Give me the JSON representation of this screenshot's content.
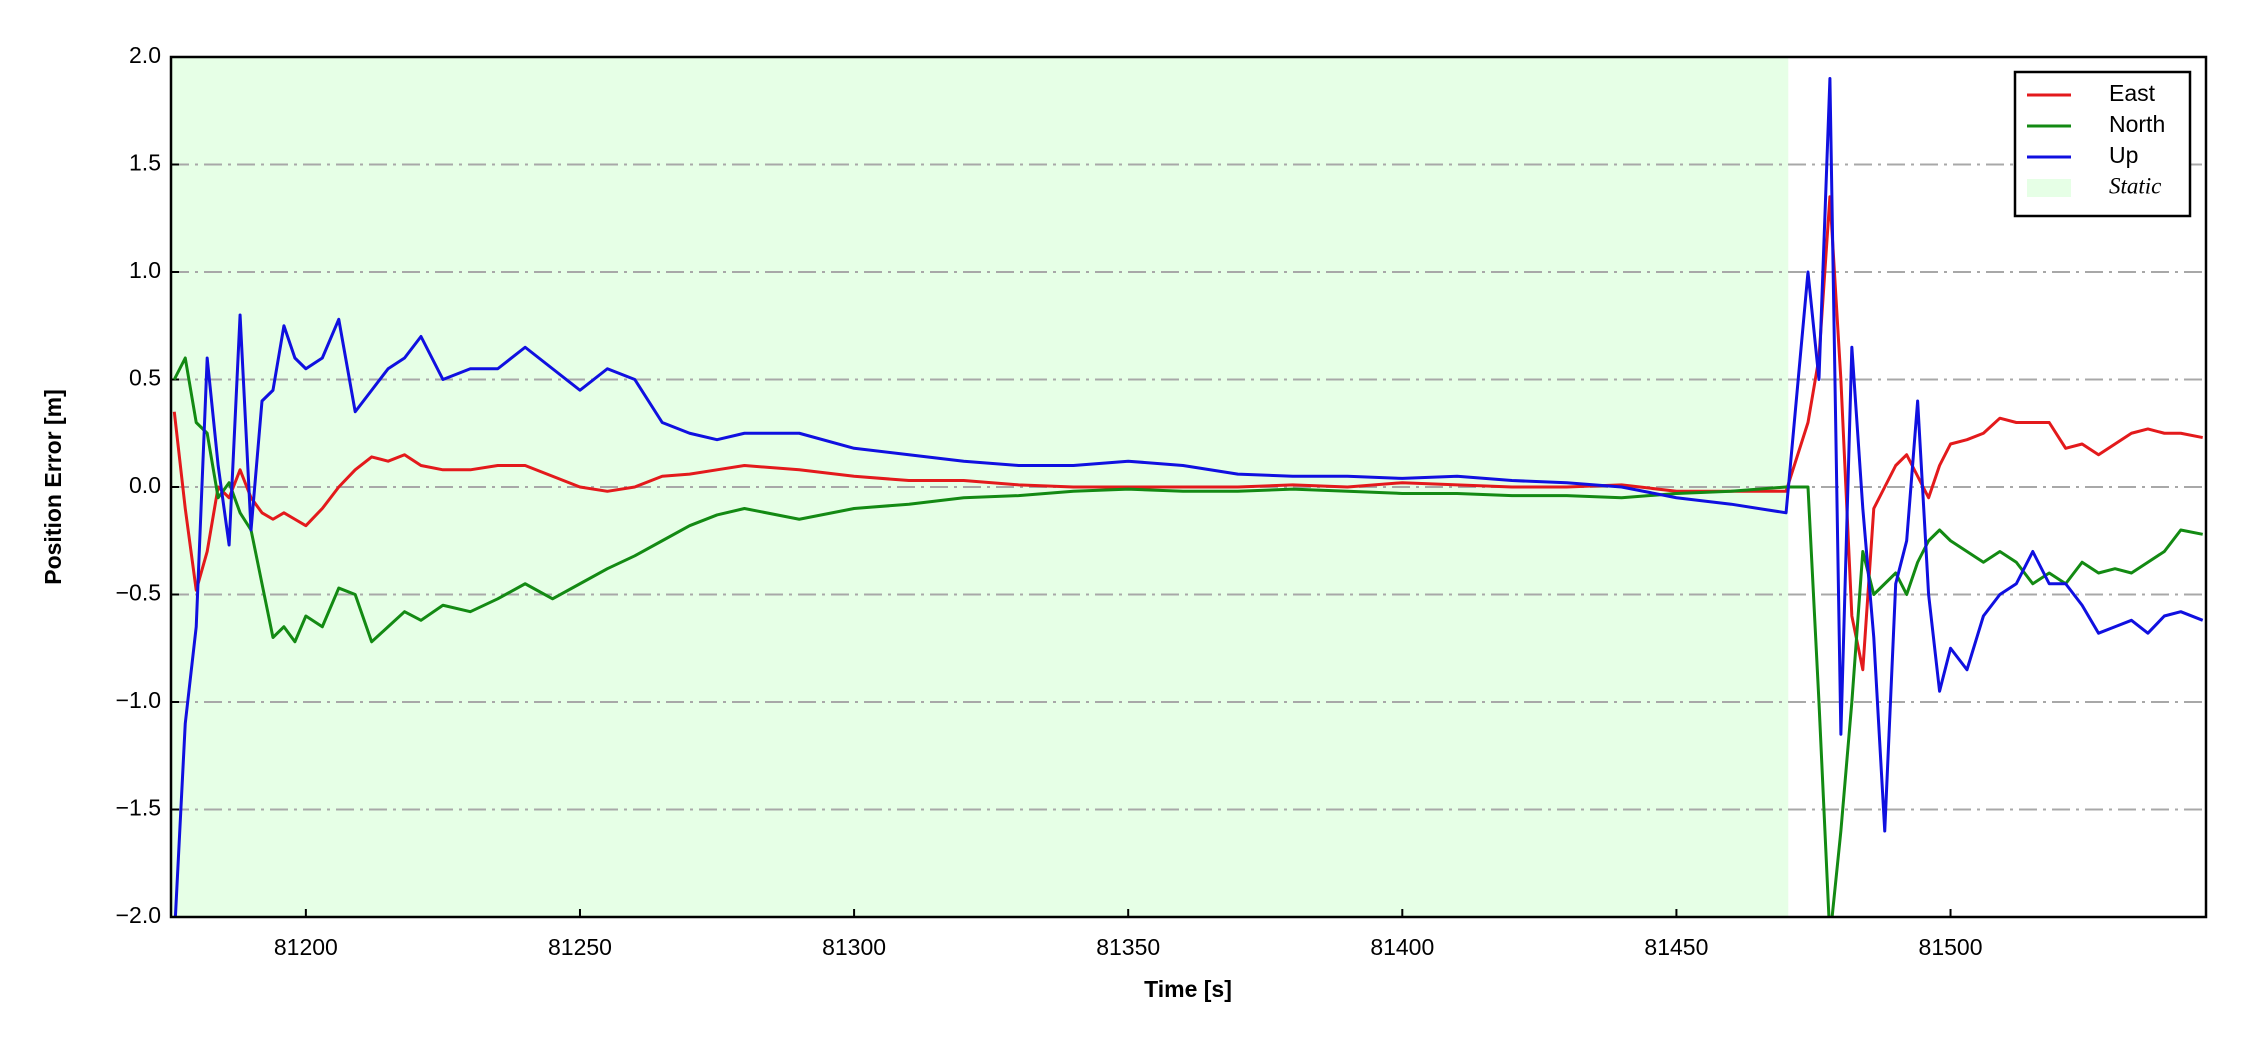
{
  "chart_data": {
    "type": "line",
    "xlabel": "Time [s]",
    "ylabel": "Position Error [m]",
    "x": [
      81176,
      81178,
      81180,
      81182,
      81184,
      81186,
      81188,
      81190,
      81192,
      81194,
      81196,
      81198,
      81200,
      81203,
      81206,
      81209,
      81212,
      81215,
      81218,
      81221,
      81225,
      81230,
      81235,
      81240,
      81245,
      81250,
      81255,
      81260,
      81265,
      81270,
      81275,
      81280,
      81290,
      81300,
      81310,
      81320,
      81330,
      81340,
      81350,
      81360,
      81370,
      81380,
      81390,
      81400,
      81410,
      81420,
      81430,
      81440,
      81450,
      81460,
      81470,
      81474,
      81476,
      81478,
      81480,
      81482,
      81484,
      81486,
      81488,
      81490,
      81492,
      81494,
      81496,
      81498,
      81500,
      81503,
      81506,
      81509,
      81512,
      81515,
      81518,
      81521,
      81524,
      81527,
      81530,
      81533,
      81536,
      81539,
      81542,
      81546
    ],
    "series": [
      {
        "name": "East",
        "color": "#e31a1c",
        "values": [
          0.35,
          -0.1,
          -0.48,
          -0.3,
          0.0,
          -0.05,
          0.08,
          -0.05,
          -0.12,
          -0.15,
          -0.12,
          -0.15,
          -0.18,
          -0.1,
          0.0,
          0.08,
          0.14,
          0.12,
          0.15,
          0.1,
          0.08,
          0.08,
          0.1,
          0.1,
          0.05,
          0.0,
          -0.02,
          0.0,
          0.05,
          0.06,
          0.08,
          0.1,
          0.08,
          0.05,
          0.03,
          0.03,
          0.01,
          0.0,
          0.0,
          0.0,
          0.0,
          0.01,
          0.0,
          0.02,
          0.01,
          0.0,
          0.0,
          0.01,
          -0.02,
          -0.02,
          -0.02,
          0.3,
          0.6,
          1.35,
          0.5,
          -0.6,
          -0.85,
          -0.1,
          0.0,
          0.1,
          0.15,
          0.05,
          -0.05,
          0.1,
          0.2,
          0.22,
          0.25,
          0.32,
          0.3,
          0.3,
          0.3,
          0.18,
          0.2,
          0.15,
          0.2,
          0.25,
          0.27,
          0.25,
          0.25,
          0.23
        ]
      },
      {
        "name": "North",
        "color": "#138a13",
        "values": [
          0.5,
          0.6,
          0.3,
          0.25,
          -0.05,
          0.02,
          -0.12,
          -0.2,
          -0.45,
          -0.7,
          -0.65,
          -0.72,
          -0.6,
          -0.65,
          -0.47,
          -0.5,
          -0.72,
          -0.65,
          -0.58,
          -0.62,
          -0.55,
          -0.58,
          -0.52,
          -0.45,
          -0.52,
          -0.45,
          -0.38,
          -0.32,
          -0.25,
          -0.18,
          -0.13,
          -0.1,
          -0.15,
          -0.1,
          -0.08,
          -0.05,
          -0.04,
          -0.02,
          -0.01,
          -0.02,
          -0.02,
          -0.01,
          -0.02,
          -0.03,
          -0.03,
          -0.04,
          -0.04,
          -0.05,
          -0.03,
          -0.02,
          0.0,
          0.0,
          -1.0,
          -2.1,
          -1.6,
          -1.0,
          -0.3,
          -0.5,
          -0.45,
          -0.4,
          -0.5,
          -0.35,
          -0.25,
          -0.2,
          -0.25,
          -0.3,
          -0.35,
          -0.3,
          -0.35,
          -0.45,
          -0.4,
          -0.45,
          -0.35,
          -0.4,
          -0.38,
          -0.4,
          -0.35,
          -0.3,
          -0.2,
          -0.22
        ]
      },
      {
        "name": "Up",
        "color": "#1010e0",
        "values": [
          -2.1,
          -1.1,
          -0.65,
          0.6,
          0.1,
          -0.27,
          0.8,
          -0.2,
          0.4,
          0.45,
          0.75,
          0.6,
          0.55,
          0.6,
          0.78,
          0.35,
          0.45,
          0.55,
          0.6,
          0.7,
          0.5,
          0.55,
          0.55,
          0.65,
          0.55,
          0.45,
          0.55,
          0.5,
          0.3,
          0.25,
          0.22,
          0.25,
          0.25,
          0.18,
          0.15,
          0.12,
          0.1,
          0.1,
          0.12,
          0.1,
          0.06,
          0.05,
          0.05,
          0.04,
          0.05,
          0.03,
          0.02,
          0.0,
          -0.05,
          -0.08,
          -0.12,
          1.0,
          0.5,
          1.9,
          -1.15,
          0.65,
          -0.1,
          -0.7,
          -1.6,
          -0.45,
          -0.25,
          0.4,
          -0.5,
          -0.95,
          -0.75,
          -0.85,
          -0.6,
          -0.5,
          -0.45,
          -0.3,
          -0.45,
          -0.45,
          -0.55,
          -0.68,
          -0.65,
          -0.62,
          -0.68,
          -0.6,
          -0.58,
          -0.62
        ]
      }
    ],
    "shade": {
      "label": "Static",
      "xrange": [
        81175.4,
        81470.4
      ],
      "color": "#e6ffe6"
    },
    "xlim": [
      81175.4,
      81546.6
    ],
    "xticks": [
      81200,
      81250,
      81300,
      81350,
      81400,
      81450,
      81500
    ],
    "ylim": [
      -2,
      2
    ],
    "yticks": [
      {
        "value": -2,
        "label": "−2.0"
      },
      {
        "value": -1.5,
        "label": "−1.5"
      },
      {
        "value": -1,
        "label": "−1.0"
      },
      {
        "value": -0.5,
        "label": "−0.5"
      },
      {
        "value": 0,
        "label": "0.0"
      },
      0.5,
      {
        "value": 1,
        "label": "1.0"
      },
      1.5,
      {
        "value": 2,
        "label": "2.0"
      }
    ],
    "grid": true,
    "legend": "upper right"
  }
}
